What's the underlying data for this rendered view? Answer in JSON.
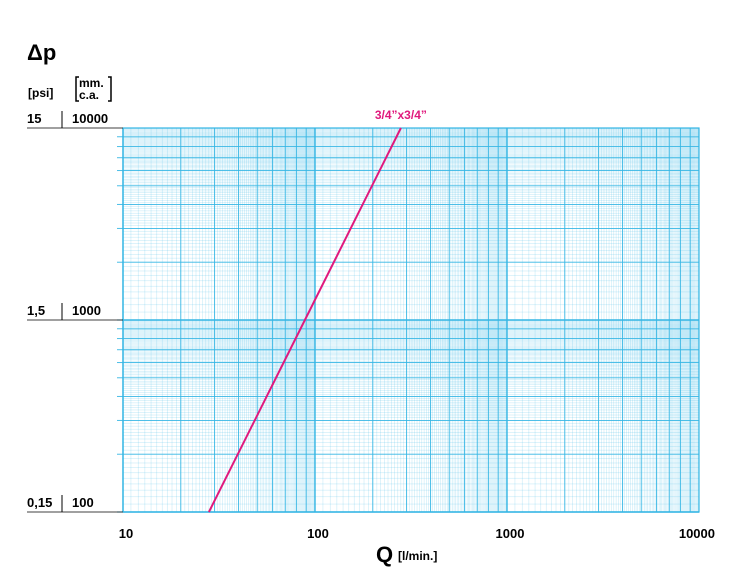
{
  "chart_data": {
    "type": "line",
    "y_symbol": "Δp",
    "y_unit_psi": "[psi]",
    "y_unit_mm_line1": "mm.",
    "y_unit_mm_line2": "c.a.",
    "x_symbol": "Q",
    "x_unit": "[l/min.]",
    "x_scale": "log",
    "y_scale": "log",
    "xlim": [
      10,
      10000
    ],
    "ylim": [
      100,
      10000
    ],
    "x_ticks": [
      {
        "value": 10,
        "label": "10"
      },
      {
        "value": 100,
        "label": "100"
      },
      {
        "value": 1000,
        "label": "1000"
      },
      {
        "value": 10000,
        "label": "10000"
      }
    ],
    "y_ticks": [
      {
        "value": 10000,
        "psi_label": "15",
        "mm_label": "10000"
      },
      {
        "value": 1000,
        "psi_label": "1,5",
        "mm_label": "1000"
      },
      {
        "value": 100,
        "psi_label": "0,15",
        "mm_label": "100"
      }
    ],
    "grid": true,
    "series": [
      {
        "name": "3/4”x3/4”",
        "color": "#e0197d",
        "points": [
          {
            "x": 28,
            "y": 100
          },
          {
            "x": 280,
            "y": 10000
          }
        ]
      }
    ]
  },
  "colors": {
    "grid": "#35b6e4",
    "series": "#e0197d",
    "text": "#000000"
  }
}
